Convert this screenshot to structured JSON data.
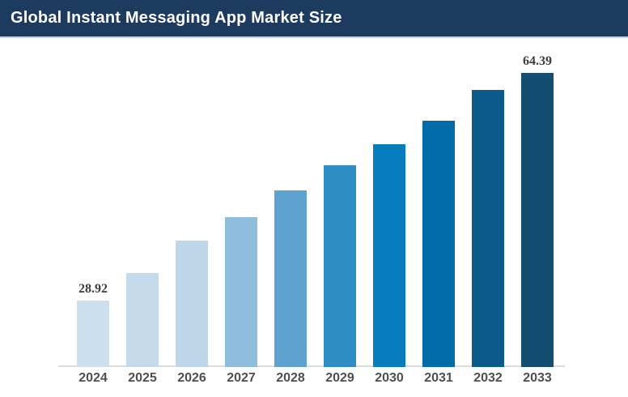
{
  "header": {
    "title": "Global Instant Messaging App Market Size",
    "background_color": "#1d3a5f",
    "text_color": "#ffffff"
  },
  "chart_data": {
    "type": "bar",
    "title": "Global Instant Messaging App Market Size",
    "categories": [
      "2024",
      "2025",
      "2026",
      "2027",
      "2028",
      "2029",
      "2030",
      "2031",
      "2032",
      "2033"
    ],
    "values": [
      28.92,
      33.22,
      38.27,
      41.92,
      46.08,
      49.99,
      53.27,
      56.92,
      61.71,
      64.39
    ],
    "value_labels": [
      "28.92",
      "",
      "",
      "",
      "",
      "",
      "",
      "",
      "",
      "64.39"
    ],
    "bar_colors": [
      "#cbdfee",
      "#c4daeb",
      "#bdd7e9",
      "#8dbcdc",
      "#5ea3cf",
      "#2e8dc5",
      "#077cbc",
      "#006ba8",
      "#0a5a8a",
      "#134d72"
    ],
    "ylim": [
      18.6,
      66
    ],
    "xlabel": "",
    "ylabel": "",
    "grid": false,
    "legend": false,
    "axis_line_color": "#dcdcdc",
    "x_label_color": "#4f4f4f",
    "value_label_color": "#3d3d3d"
  }
}
